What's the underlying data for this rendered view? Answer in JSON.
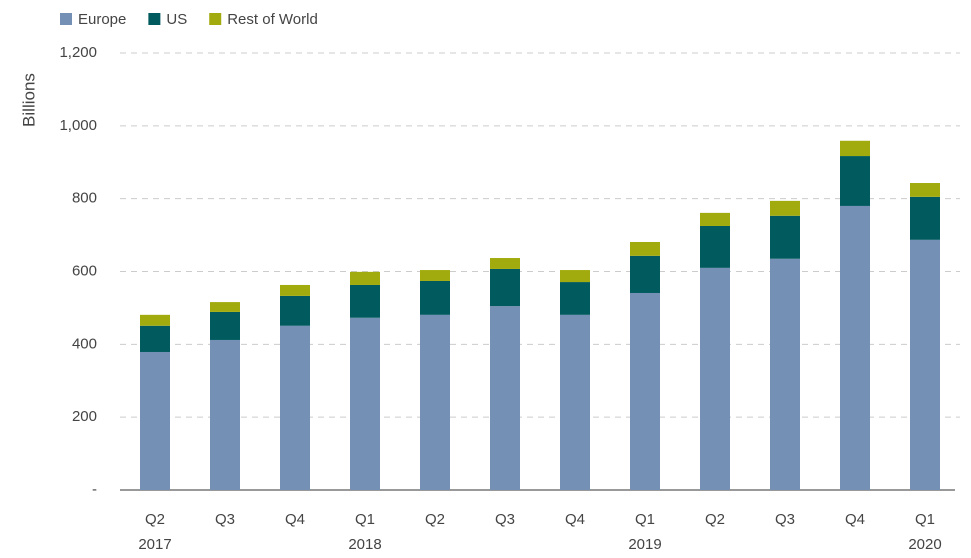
{
  "chart_data": {
    "type": "stacked_bar",
    "ylabel": "Billions",
    "categories": [
      "Q2",
      "Q3",
      "Q4",
      "Q1",
      "Q2",
      "Q3",
      "Q4",
      "Q1",
      "Q2",
      "Q3",
      "Q4",
      "Q1"
    ],
    "years": [
      "2017",
      null,
      null,
      "2018",
      null,
      null,
      null,
      "2019",
      null,
      null,
      null,
      "2020"
    ],
    "series": [
      {
        "name": "Europe",
        "color": "#7490b4",
        "values": [
          379,
          412,
          451,
          473,
          481,
          505,
          481,
          541,
          610,
          635,
          780,
          687
        ]
      },
      {
        "name": "US",
        "color": "#005a5e",
        "values": [
          72,
          77,
          82,
          90,
          93,
          102,
          90,
          102,
          115,
          118,
          137,
          118
        ]
      },
      {
        "name": "Rest of World",
        "color": "#a2ab0e",
        "values": [
          30,
          27,
          30,
          36,
          30,
          30,
          33,
          38,
          36,
          41,
          42,
          38
        ]
      }
    ],
    "ylim": [
      0,
      1200
    ],
    "yticks": [
      {
        "value": 0,
        "label": "-"
      },
      200,
      400,
      600,
      800,
      {
        "value": 1000,
        "label": "1,000"
      },
      {
        "value": 1200,
        "label": "1,200"
      }
    ],
    "grid": true,
    "legend": "top-left"
  }
}
